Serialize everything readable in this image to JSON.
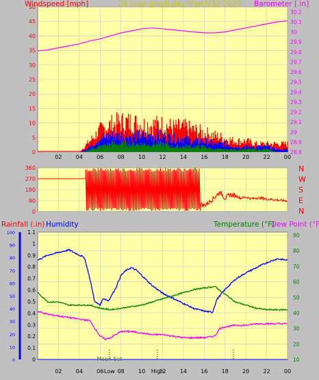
{
  "title": "24 hour graph day   March 12 2025",
  "colors": {
    "background": "#c0c0c0",
    "plot_bg": "#ffffa8",
    "grid": "#c8c8c8",
    "wind": "#ff0000",
    "gust_mid": "#0000ff",
    "gust_low": "#008000",
    "barometer": "#ff00ff",
    "direction": "#ff0000",
    "humidity": "#0000ff",
    "temperature": "#008000",
    "dewpoint": "#ff00ff",
    "rain": "#0000ff"
  },
  "chart_data": [
    {
      "type": "line",
      "name": "wind-barometer",
      "title": "24 hour graph day   March 12 2025",
      "ylabel_left": "Windspeed [mph]",
      "ylabel_right": "Barometer [.in]",
      "x_ticks": [
        "02",
        "04",
        "06",
        "08",
        "10",
        "12",
        "14",
        "16",
        "18",
        "20",
        "22",
        "00"
      ],
      "y_left_ticks": [
        "0",
        "5",
        "10",
        "15",
        "20",
        "25",
        "30",
        "35",
        "40",
        "45",
        "50"
      ],
      "y_right_ticks": [
        "28.8",
        "28.9",
        "29",
        "29.1",
        "29.2",
        "29.3",
        "29.4",
        "29.5",
        "29.6",
        "29.7",
        "29.8",
        "29.9",
        "30",
        "30.1",
        "30.2"
      ],
      "ylim_left": [
        0,
        50
      ],
      "ylim_right": [
        28.8,
        30.25
      ],
      "xlim": [
        0,
        24
      ],
      "series": [
        {
          "series": "barometer",
          "axis": "right",
          "x": [
            0,
            1,
            2,
            3,
            4,
            5,
            6,
            7,
            8,
            9,
            10,
            11,
            12,
            13,
            14,
            15,
            16,
            17,
            18,
            19,
            20,
            21,
            22,
            23,
            24
          ],
          "y": [
            29.81,
            29.82,
            29.84,
            29.86,
            29.88,
            29.91,
            29.93,
            29.96,
            29.99,
            30.01,
            30.03,
            30.04,
            30.03,
            30.02,
            30.01,
            30.0,
            29.99,
            29.99,
            30.0,
            30.02,
            30.04,
            30.06,
            30.08,
            30.1,
            30.11
          ]
        },
        {
          "series": "wind-max",
          "axis": "left",
          "x": [
            0,
            1,
            2,
            3,
            4,
            4.5,
            5,
            6,
            7,
            8,
            9,
            10,
            11,
            12,
            13,
            14,
            15,
            16,
            17,
            18,
            19,
            20,
            21,
            22,
            23,
            24
          ],
          "y": [
            0,
            0,
            0,
            0,
            0,
            2,
            4,
            8,
            10,
            11,
            11,
            10,
            10,
            10,
            9,
            9,
            8,
            7,
            6,
            5,
            4,
            4,
            3,
            3,
            3,
            3
          ]
        },
        {
          "series": "wind-mid",
          "axis": "left",
          "x": [
            0,
            1,
            2,
            3,
            4,
            4.5,
            5,
            6,
            7,
            8,
            9,
            10,
            11,
            12,
            13,
            14,
            15,
            16,
            17,
            18,
            19,
            20,
            21,
            22,
            23,
            24
          ],
          "y": [
            0,
            0,
            0,
            0,
            0,
            1,
            2,
            5,
            6,
            6,
            6,
            6,
            6,
            6,
            5,
            5,
            4,
            4,
            3,
            3,
            2,
            2,
            2,
            2,
            1,
            1
          ]
        },
        {
          "series": "wind-avg",
          "axis": "left",
          "x": [
            0,
            1,
            2,
            3,
            4,
            4.5,
            5,
            6,
            7,
            8,
            9,
            10,
            11,
            12,
            13,
            14,
            15,
            16,
            17,
            18,
            19,
            20,
            21,
            22,
            23,
            24
          ],
          "y": [
            0,
            0,
            0,
            0,
            0,
            0,
            1,
            2,
            3,
            3,
            3,
            3,
            3,
            3,
            2,
            2,
            2,
            2,
            1,
            1,
            1,
            1,
            1,
            1,
            0,
            0
          ]
        }
      ]
    },
    {
      "type": "line",
      "name": "wind-direction",
      "y_ticks": [
        "0",
        "90",
        "180",
        "270",
        "360"
      ],
      "compass_labels": [
        "N",
        "W",
        "S",
        "E",
        "N"
      ],
      "ylim": [
        0,
        360
      ],
      "xlim": [
        0,
        24
      ],
      "series": [
        {
          "series": "direction",
          "x": [
            0,
            1,
            2,
            3,
            4,
            4.6,
            4.7,
            5.5,
            6.5,
            7.5,
            8.5,
            9.5,
            10.5,
            11.5,
            12.5,
            13.5,
            14.5,
            15.5,
            16,
            16.5,
            17,
            17.5,
            18,
            18.5,
            19,
            19.5,
            20,
            20.5,
            21,
            21.5,
            22,
            22.5,
            23,
            23.5,
            24
          ],
          "y": [
            270,
            270,
            270,
            270,
            270,
            270,
            10,
            300,
            20,
            330,
            15,
            330,
            20,
            320,
            30,
            300,
            40,
            60,
            50,
            80,
            120,
            160,
            110,
            140,
            130,
            110,
            120,
            105,
            112,
            110,
            102,
            100,
            95,
            90,
            88
          ]
        }
      ]
    },
    {
      "type": "line",
      "name": "rain-humidity-temperature",
      "ylabel_left_1": "Rainfall (.in)",
      "ylabel_left_2": "Humidity",
      "ylabel_right_1": "Temperature (°F)",
      "ylabel_right_2": "Dew Point (°F)",
      "x_ticks": [
        "02",
        "04",
        "06",
        "08",
        "10",
        "12",
        "14",
        "16",
        "18",
        "20",
        "22",
        "00"
      ],
      "annotations": [
        "Low",
        "Moon Set",
        "High"
      ],
      "y_rain_ticks": [
        "0",
        "0.1",
        "0.2",
        "0.3",
        "0.4",
        "0.5",
        "0.6",
        "0.7",
        "0.8",
        "0.9",
        "1",
        "1.1"
      ],
      "y_humidity_ticks": [
        "0",
        "10",
        "20",
        "30",
        "40",
        "50",
        "60",
        "70",
        "80",
        "90",
        "100"
      ],
      "y_temp_ticks": [
        "10",
        "20",
        "30",
        "40",
        "50",
        "60",
        "70",
        "80",
        "90"
      ],
      "ylim_rain": [
        0,
        1.1
      ],
      "ylim_humidity": [
        0,
        100
      ],
      "ylim_temp": [
        10,
        92
      ],
      "xlim": [
        0,
        24
      ],
      "series": [
        {
          "series": "humidity",
          "axis": "humidity",
          "x": [
            0,
            1,
            2,
            3,
            4,
            4.5,
            5,
            5.5,
            6,
            6.3,
            6.8,
            7.5,
            8,
            8.5,
            9,
            9.5,
            10,
            11,
            12,
            13,
            14,
            15,
            16,
            16.8,
            17.2,
            18,
            19,
            20,
            21,
            22,
            23,
            24
          ],
          "y": [
            78,
            82,
            84,
            86,
            82,
            80,
            64,
            45,
            43,
            48,
            46,
            56,
            66,
            70,
            72,
            70,
            66,
            58,
            52,
            48,
            44,
            40,
            38,
            37,
            47,
            55,
            63,
            68,
            72,
            76,
            79,
            78
          ]
        },
        {
          "series": "temperature",
          "axis": "temp",
          "x": [
            0,
            1,
            2,
            3,
            4,
            5,
            6,
            7,
            8,
            9,
            10,
            11,
            12,
            13,
            14,
            15,
            16,
            17,
            18,
            19,
            20,
            21,
            22,
            23,
            24
          ],
          "y": [
            53,
            47,
            47,
            45,
            45,
            45,
            43,
            42,
            43,
            44,
            45,
            47,
            49,
            51,
            53,
            55,
            56,
            57,
            52,
            47,
            45,
            43,
            42,
            42,
            42
          ]
        },
        {
          "series": "dewpoint",
          "axis": "temp",
          "x": [
            0,
            1,
            2,
            3,
            4,
            5,
            6,
            6.5,
            7,
            7.5,
            8,
            9,
            10,
            11,
            12,
            13,
            14,
            15,
            16,
            17,
            17.5,
            18,
            19,
            20,
            21,
            22,
            23,
            24
          ],
          "y": [
            41,
            39,
            38,
            37,
            36,
            35,
            25,
            23,
            24,
            26,
            28,
            28,
            27,
            26,
            26,
            25,
            24,
            24,
            24,
            25,
            30,
            31,
            32,
            32,
            33,
            33,
            33,
            33
          ]
        },
        {
          "series": "rain",
          "axis": "rain",
          "x": [
            0,
            24
          ],
          "y": [
            0,
            0
          ]
        }
      ]
    }
  ]
}
